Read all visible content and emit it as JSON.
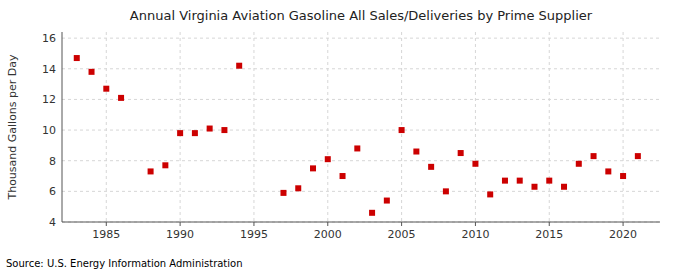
{
  "chart_data": {
    "type": "scatter",
    "title": "Annual Virginia Aviation Gasoline All Sales/Deliveries by Prime Supplier",
    "ylabel": "Thousand Gallons per Day",
    "annotations": [
      "Source: U.S. Energy Information Administration"
    ],
    "x": [
      1983,
      1984,
      1985,
      1986,
      1988,
      1989,
      1990,
      1991,
      1992,
      1993,
      1994,
      1997,
      1998,
      1999,
      2000,
      2001,
      2002,
      2003,
      2004,
      2005,
      2006,
      2007,
      2008,
      2009,
      2010,
      2011,
      2012,
      2013,
      2014,
      2015,
      2016,
      2017,
      2018,
      2019,
      2020,
      2021
    ],
    "values": [
      14.7,
      13.8,
      12.7,
      12.1,
      7.3,
      7.7,
      9.8,
      9.8,
      10.1,
      10.0,
      14.2,
      5.9,
      6.2,
      7.5,
      8.1,
      7.0,
      8.8,
      4.6,
      5.4,
      10.0,
      8.6,
      7.6,
      6.0,
      8.5,
      7.8,
      5.8,
      6.7,
      6.7,
      6.3,
      6.7,
      6.3,
      7.8,
      8.3,
      7.3,
      7.0,
      8.3
    ],
    "color": "#cc0000",
    "marker": "square",
    "xlim": [
      1982,
      2022.5
    ],
    "ylim": [
      4,
      16.4
    ],
    "xticks": [
      1985,
      1990,
      1995,
      2000,
      2005,
      2010,
      2015,
      2020
    ],
    "yticks": [
      4,
      6,
      8,
      10,
      12,
      14,
      16
    ],
    "grid": true
  }
}
